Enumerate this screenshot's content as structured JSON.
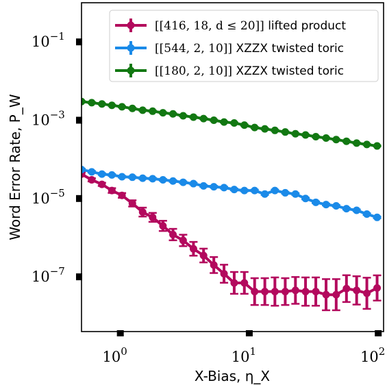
{
  "chart_data": {
    "type": "line",
    "xscale": "log",
    "yscale": "log",
    "xlim": [
      0.5,
      110
    ],
    "ylim": [
      4e-09,
      1.0
    ],
    "xlabel": "X-Bias, η_X",
    "ylabel": "Word Error Rate, P_W",
    "x_ticks": [
      {
        "value": 1,
        "base": "10",
        "exp": "0"
      },
      {
        "value": 10,
        "base": "10",
        "exp": "1"
      },
      {
        "value": 100,
        "base": "10",
        "exp": "2"
      }
    ],
    "y_ticks": [
      {
        "value": 0.1,
        "base": "10",
        "exp": "−1"
      },
      {
        "value": 0.001,
        "base": "10",
        "exp": "−3"
      },
      {
        "value": 1e-05,
        "base": "10",
        "exp": "−5"
      },
      {
        "value": 1e-07,
        "base": "10",
        "exp": "−7"
      }
    ],
    "grid": false,
    "legend_position": "top-right",
    "series": [
      {
        "name": "[[416, 18, d ≤ 20]] lifted product",
        "legend_math": "[[416, 18, d ≤ 20]]",
        "legend_text": "lifted product",
        "color": "#b3095d",
        "x": [
          0.5,
          0.6,
          0.72,
          0.86,
          1.03,
          1.24,
          1.49,
          1.78,
          2.14,
          2.56,
          3.07,
          3.69,
          4.42,
          5.31,
          6.37,
          7.64,
          9.16,
          11.0,
          13.2,
          15.8,
          19.0,
          22.8,
          27.3,
          32.8,
          39.4,
          47.2,
          56.7,
          68.0,
          81.6,
          98.0
        ],
        "y": [
          4.2e-05,
          3e-05,
          2.3e-05,
          1.6e-05,
          1.2e-05,
          7.5e-06,
          4.5e-06,
          3.3e-06,
          2e-06,
          1.2e-06,
          8.5e-07,
          5.2e-07,
          3.5e-07,
          2e-07,
          1.2e-07,
          7e-08,
          7e-08,
          4.2e-08,
          4.2e-08,
          4.2e-08,
          4.2e-08,
          4.5e-08,
          4.2e-08,
          4.2e-08,
          3.5e-08,
          3.5e-08,
          5e-08,
          4.5e-08,
          3.8e-08,
          5.2e-08
        ],
        "y_err_factor": [
          1.1,
          1.1,
          1.1,
          1.15,
          1.15,
          1.2,
          1.3,
          1.3,
          1.35,
          1.4,
          1.4,
          1.5,
          1.5,
          1.6,
          1.7,
          1.9,
          1.9,
          2.2,
          2.2,
          2.3,
          2.2,
          2.2,
          2.3,
          2.3,
          2.5,
          2.5,
          2.2,
          2.3,
          2.5,
          2.1
        ]
      },
      {
        "name": "[[544, 2, 10]] XZZX twisted toric",
        "legend_math": "[[544, 2, 10]]",
        "legend_text": "XZZX twisted toric",
        "color": "#1a8ae8",
        "x": [
          0.5,
          0.6,
          0.72,
          0.86,
          1.03,
          1.24,
          1.49,
          1.78,
          2.14,
          2.56,
          3.07,
          3.69,
          4.42,
          5.31,
          6.37,
          7.64,
          9.16,
          11.0,
          13.2,
          15.8,
          19.0,
          22.8,
          27.3,
          32.8,
          39.4,
          47.2,
          56.7,
          68.0,
          81.6,
          98.0
        ],
        "y": [
          5.5e-05,
          4.8e-05,
          4.2e-05,
          4e-05,
          3.6e-05,
          3.5e-05,
          3.3e-05,
          3.2e-05,
          3e-05,
          2.8e-05,
          2.6e-05,
          2.4e-05,
          2.1e-05,
          2e-05,
          1.9e-05,
          1.7e-05,
          1.6e-05,
          1.6e-05,
          1.3e-05,
          1.6e-05,
          1.4e-05,
          1.3e-05,
          1e-05,
          8e-06,
          7e-06,
          6.5e-06,
          5.5e-06,
          5e-06,
          4e-06,
          3.3e-06
        ],
        "y_err_factor": [
          1.05,
          1.05,
          1.05,
          1.05,
          1.05,
          1.05,
          1.05,
          1.05,
          1.05,
          1.05,
          1.05,
          1.05,
          1.05,
          1.05,
          1.05,
          1.05,
          1.05,
          1.05,
          1.05,
          1.05,
          1.05,
          1.05,
          1.05,
          1.05,
          1.05,
          1.05,
          1.05,
          1.05,
          1.05,
          1.05
        ]
      },
      {
        "name": "[[180, 2, 10]] XZZX twisted toric",
        "legend_math": "[[180, 2, 10]]",
        "legend_text": "XZZX twisted toric",
        "color": "#127812",
        "x": [
          0.5,
          0.6,
          0.72,
          0.86,
          1.03,
          1.24,
          1.49,
          1.78,
          2.14,
          2.56,
          3.07,
          3.69,
          4.42,
          5.31,
          6.37,
          7.64,
          9.16,
          11.0,
          13.2,
          15.8,
          19.0,
          22.8,
          27.3,
          32.8,
          39.4,
          47.2,
          56.7,
          68.0,
          81.6,
          98.0
        ],
        "y": [
          0.003,
          0.0028,
          0.0026,
          0.0024,
          0.0022,
          0.002,
          0.0018,
          0.0017,
          0.00155,
          0.00145,
          0.0013,
          0.0012,
          0.0011,
          0.001,
          0.0009,
          0.00085,
          0.00075,
          0.00065,
          0.0006,
          0.00055,
          0.0005,
          0.00045,
          0.00042,
          0.00038,
          0.00035,
          0.00032,
          0.00029,
          0.00026,
          0.00024,
          0.00022
        ],
        "y_err_factor": [
          1.03,
          1.03,
          1.03,
          1.03,
          1.03,
          1.03,
          1.03,
          1.03,
          1.03,
          1.03,
          1.03,
          1.03,
          1.03,
          1.03,
          1.03,
          1.03,
          1.03,
          1.03,
          1.03,
          1.03,
          1.03,
          1.03,
          1.03,
          1.03,
          1.03,
          1.03,
          1.03,
          1.03,
          1.03,
          1.03
        ]
      }
    ]
  }
}
